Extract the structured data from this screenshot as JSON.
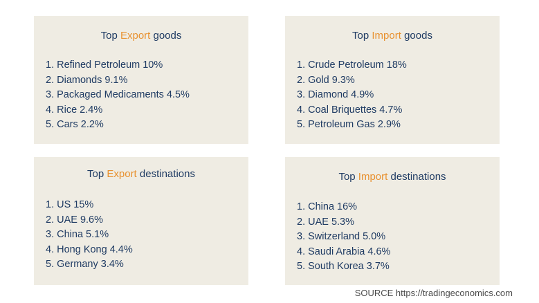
{
  "cards": [
    {
      "title_prefix": "Top",
      "title_accent": "Export",
      "title_suffix": "goods",
      "items": [
        "1. Refined Petroleum 10%",
        "2. Diamonds 9.1%",
        "3. Packaged Medicaments 4.5%",
        "4. Rice 2.4%",
        "5. Cars 2.2%"
      ]
    },
    {
      "title_prefix": "Top",
      "title_accent": "Import",
      "title_suffix": "goods",
      "items": [
        "1. Crude Petroleum 18%",
        "2. Gold 9.3%",
        "3. Diamond 4.9%",
        "4. Coal Briquettes 4.7%",
        "5. Petroleum Gas 2.9%"
      ]
    },
    {
      "title_prefix": "Top",
      "title_accent": "Export",
      "title_suffix": "destinations",
      "items": [
        "1. US 15%",
        "2. UAE 9.6%",
        "3. China 5.1%",
        "4. Hong Kong 4.4%",
        "5. Germany 3.4%"
      ]
    },
    {
      "title_prefix": "Top",
      "title_accent": "Import",
      "title_suffix": "destinations",
      "items": [
        "1. China 16%",
        "2. UAE 5.3%",
        "3. Switzerland 5.0%",
        "4. Saudi Arabia 4.6%",
        "5. South Korea 3.7%"
      ]
    }
  ],
  "source": "SOURCE https://tradingeconomics.com",
  "colors": {
    "card_background": "#efece3",
    "text": "#1f3b63",
    "accent": "#e8912f"
  }
}
